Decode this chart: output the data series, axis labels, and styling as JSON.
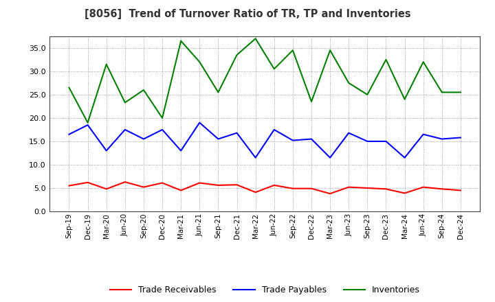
{
  "title": "[8056]  Trend of Turnover Ratio of TR, TP and Inventories",
  "x_labels": [
    "Sep-19",
    "Dec-19",
    "Mar-20",
    "Jun-20",
    "Sep-20",
    "Dec-20",
    "Mar-21",
    "Jun-21",
    "Sep-21",
    "Dec-21",
    "Mar-22",
    "Jun-22",
    "Sep-22",
    "Dec-22",
    "Mar-23",
    "Jun-23",
    "Sep-23",
    "Dec-23",
    "Mar-24",
    "Jun-24",
    "Sep-24",
    "Dec-24"
  ],
  "trade_receivables": [
    5.5,
    6.2,
    4.8,
    6.3,
    5.2,
    6.1,
    4.5,
    6.1,
    5.6,
    5.7,
    4.1,
    5.6,
    4.9,
    4.9,
    3.8,
    5.2,
    5.0,
    4.8,
    3.9,
    5.2,
    4.8,
    4.5
  ],
  "trade_payables": [
    16.5,
    18.5,
    13.0,
    17.5,
    15.5,
    17.5,
    13.0,
    19.0,
    15.5,
    16.8,
    11.5,
    17.5,
    15.2,
    15.5,
    11.5,
    16.8,
    15.0,
    15.0,
    11.5,
    16.5,
    15.5,
    15.8
  ],
  "inventories": [
    26.5,
    19.0,
    31.5,
    23.3,
    26.0,
    20.0,
    36.5,
    32.0,
    25.5,
    33.5,
    37.0,
    30.5,
    34.5,
    23.5,
    34.5,
    27.5,
    25.0,
    32.5,
    24.0,
    32.0,
    25.5,
    25.5
  ],
  "ylim": [
    0,
    37.5
  ],
  "yticks": [
    0.0,
    5.0,
    10.0,
    15.0,
    20.0,
    25.0,
    30.0,
    35.0
  ],
  "line_color_tr": "#FF0000",
  "line_color_tp": "#0000FF",
  "line_color_inv": "#008000",
  "background_color": "#FFFFFF",
  "grid_color": "#888888",
  "legend_tr": "Trade Receivables",
  "legend_tp": "Trade Payables",
  "legend_inv": "Inventories"
}
